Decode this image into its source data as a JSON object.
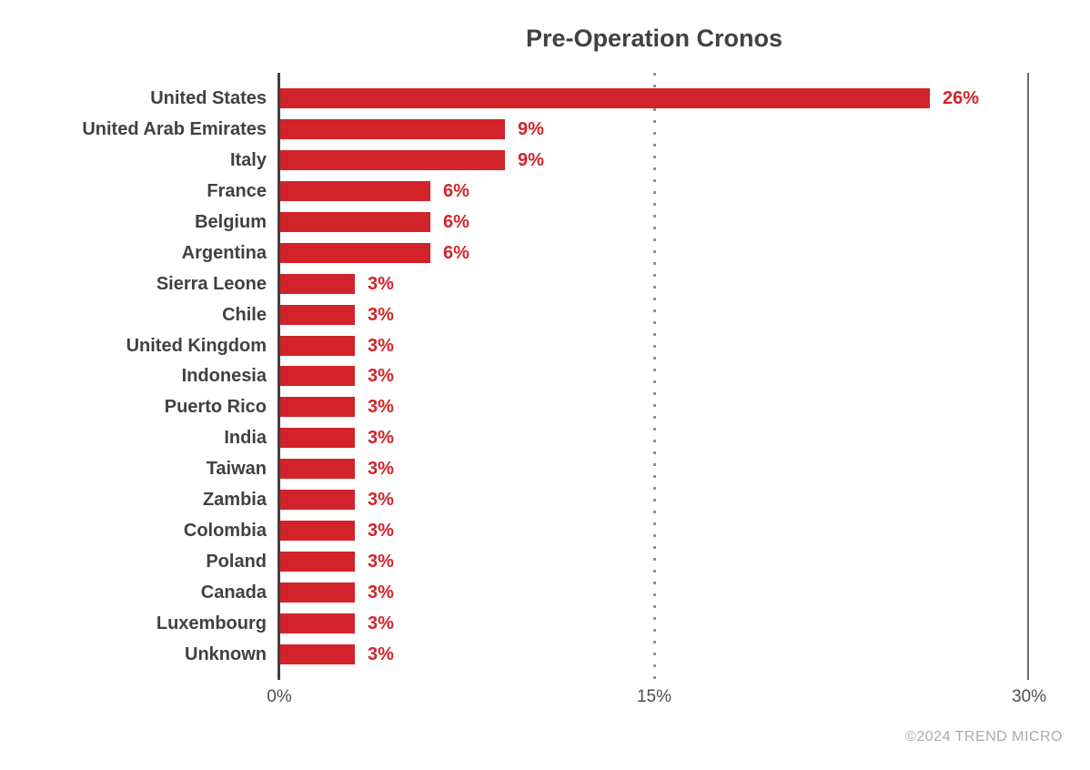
{
  "title": "Pre-Operation Cronos",
  "footer": {
    "credit": "©2024 TREND MICRO"
  },
  "colors": {
    "bar_red": "#D2232A",
    "value_label_red": "#D2232A",
    "category_label_gray": "#414042",
    "axis_zero_line": "#414042",
    "axis_end_line": "#6D6E71",
    "grid_dotted_gray": "#8F9092",
    "tick_label_gray": "#4D4D4F",
    "credit_gray": "#ABABAB"
  },
  "chart_data": {
    "type": "bar",
    "orientation": "horizontal",
    "title": "Pre-Operation Cronos",
    "categories": [
      "United States",
      "United Arab Emirates",
      "Italy",
      "France",
      "Belgium",
      "Argentina",
      "Sierra Leone",
      "Chile",
      "United Kingdom",
      "Indonesia",
      "Puerto Rico",
      "India",
      "Taiwan",
      "Zambia",
      "Colombia",
      "Poland",
      "Canada",
      "Luxembourg",
      "Unknown"
    ],
    "values": [
      26,
      9,
      9,
      6,
      6,
      6,
      3,
      3,
      3,
      3,
      3,
      3,
      3,
      3,
      3,
      3,
      3,
      3,
      3
    ],
    "value_labels": [
      "26%",
      "9%",
      "9%",
      "6%",
      "6%",
      "6%",
      "3%",
      "3%",
      "3%",
      "3%",
      "3%",
      "3%",
      "3%",
      "3%",
      "3%",
      "3%",
      "3%",
      "3%",
      "3%"
    ],
    "xlabel": "",
    "ylabel": "",
    "xlim": [
      0,
      30
    ],
    "x_ticks": [
      {
        "value": 0,
        "label": "0%"
      },
      {
        "value": 15,
        "label": "15%"
      },
      {
        "value": 30,
        "label": "30%"
      }
    ],
    "gridline": {
      "at": 15,
      "style": "dotted"
    },
    "legend": "none"
  }
}
